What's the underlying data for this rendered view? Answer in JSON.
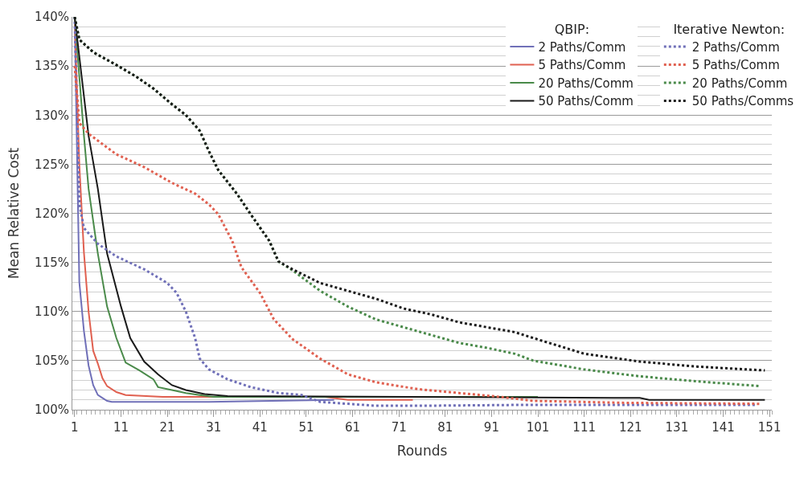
{
  "chart_data": {
    "type": "line",
    "xlabel": "Rounds",
    "ylabel": "Mean Relative Cost",
    "xlim": [
      0.5,
      151.5
    ],
    "xticks": [
      1,
      11,
      21,
      31,
      41,
      51,
      61,
      71,
      81,
      91,
      101,
      111,
      121,
      131,
      141,
      151
    ],
    "ylim": [
      100,
      140
    ],
    "yticks": [
      {
        "value": 100,
        "label": "100%"
      },
      {
        "value": 105,
        "label": "105%"
      },
      {
        "value": 110,
        "label": "110%"
      },
      {
        "value": 115,
        "label": "115%"
      },
      {
        "value": 120,
        "label": "120%"
      },
      {
        "value": 125,
        "label": "125%"
      },
      {
        "value": 130,
        "label": "130%"
      },
      {
        "value": 135,
        "label": "135%"
      },
      {
        "value": 140,
        "label": "140%"
      }
    ],
    "grid": "y",
    "legend": "top right",
    "legend_title": [
      "QBIP:",
      "Iterative Newton:"
    ],
    "marker": "none",
    "series": [
      {
        "name": "2 Paths/Comm",
        "color": "#7070b8",
        "line_style": "solid",
        "x": [
          1,
          2,
          3,
          4,
          5,
          6,
          7,
          8,
          9,
          30,
          57
        ],
        "values": [
          140,
          113,
          108,
          104.5,
          102.5,
          101.5,
          101.2,
          100.9,
          100.8,
          100.8,
          101.0
        ]
      },
      {
        "name": "5 Paths/Comm",
        "color": "#e06050",
        "line_style": "solid",
        "x": [
          1,
          2,
          3,
          4,
          5,
          6,
          7,
          8,
          10,
          12,
          20,
          55,
          60,
          74
        ],
        "values": [
          140,
          125,
          116,
          110,
          106,
          104.7,
          103.2,
          102.4,
          101.8,
          101.5,
          101.3,
          101.3,
          101.0,
          101.0
        ]
      },
      {
        "name": "20 Paths/Comm",
        "color": "#4a8a4a",
        "line_style": "solid",
        "x": [
          1,
          3,
          4,
          6,
          8,
          10,
          12,
          15,
          18,
          19,
          22,
          25,
          28,
          31,
          101
        ],
        "values": [
          140,
          127.9,
          122.5,
          115.9,
          110.5,
          107.3,
          104.8,
          104.0,
          103.1,
          102.3,
          102.0,
          101.7,
          101.5,
          101.3,
          101.3
        ]
      },
      {
        "name": "50 Paths/Comm",
        "color": "#1a1a1a",
        "line_style": "solid",
        "x": [
          1,
          4,
          6,
          8,
          11,
          13,
          16,
          19,
          22,
          25,
          29,
          34,
          123,
          125,
          150
        ],
        "values": [
          140,
          127.9,
          122.5,
          115.9,
          110.5,
          107.3,
          104.9,
          103.6,
          102.5,
          102.0,
          101.6,
          101.4,
          101.2,
          101.0,
          101.0
        ]
      },
      {
        "name": "2 Paths/Comm",
        "color": "#7070b8",
        "line_style": "dotted",
        "x": [
          1,
          2,
          3,
          6,
          10,
          16,
          21,
          23,
          25,
          27,
          28,
          30,
          34,
          39,
          45,
          50,
          54,
          66,
          75,
          100,
          148
        ],
        "values": [
          140,
          121,
          118.5,
          116.9,
          115.6,
          114.3,
          112.9,
          111.9,
          110.0,
          107.3,
          105.2,
          104.1,
          103.1,
          102.3,
          101.7,
          101.5,
          100.8,
          100.4,
          100.4,
          100.5,
          100.5
        ]
      },
      {
        "name": "5 Paths/Comm",
        "color": "#e06050",
        "line_style": "dotted",
        "x": [
          1,
          2,
          4,
          10,
          16,
          22,
          27,
          30,
          32,
          35,
          37,
          41,
          44,
          48,
          54,
          60,
          66,
          75,
          84,
          93,
          100,
          120,
          149
        ],
        "values": [
          135,
          129.2,
          128.1,
          126,
          124.7,
          123.1,
          122,
          120.9,
          119.9,
          117.2,
          114.5,
          111.9,
          109.2,
          107.2,
          105.2,
          103.6,
          102.8,
          102.1,
          101.7,
          101.3,
          100.9,
          100.7,
          100.6
        ]
      },
      {
        "name": "20 Paths/Comm",
        "color": "#4a8a4a",
        "line_style": "dotted",
        "x": [
          1,
          2,
          5,
          10,
          14,
          18,
          22,
          25,
          28,
          30,
          32,
          36,
          39,
          43,
          45,
          48,
          54,
          60,
          66,
          72,
          78,
          84,
          90,
          96,
          100,
          111,
          123,
          135,
          149
        ],
        "values": [
          140,
          137.7,
          136.4,
          135.1,
          134,
          132.7,
          131.1,
          130,
          128.4,
          126.3,
          124.4,
          122,
          119.9,
          117.2,
          115.1,
          114.2,
          112.1,
          110.5,
          109.2,
          108.4,
          107.6,
          106.8,
          106.3,
          105.7,
          105.0,
          104.1,
          103.4,
          102.9,
          102.4
        ]
      },
      {
        "name": "50 Paths/Comms",
        "color": "#1a1a1a",
        "line_style": "dotted",
        "x": [
          1,
          2,
          5,
          10,
          14,
          18,
          22,
          25,
          28,
          30,
          32,
          36,
          39,
          43,
          45,
          48,
          54,
          60,
          66,
          72,
          78,
          84,
          90,
          96,
          100,
          111,
          123,
          135,
          150
        ],
        "values": [
          140,
          137.7,
          136.4,
          135.1,
          134,
          132.7,
          131.1,
          130,
          128.4,
          126.3,
          124.4,
          122,
          119.9,
          117.2,
          115.1,
          114.3,
          112.9,
          112.1,
          111.3,
          110.3,
          109.7,
          108.9,
          108.4,
          107.9,
          107.3,
          105.7,
          104.9,
          104.4,
          104.0
        ]
      }
    ]
  }
}
